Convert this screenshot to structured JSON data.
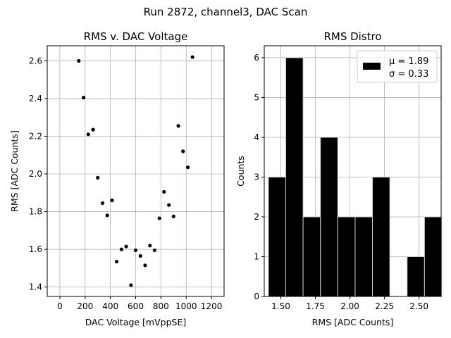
{
  "figure": {
    "suptitle": "Run 2872, channel3, DAC Scan"
  },
  "chart_data": [
    {
      "type": "scatter",
      "title": "RMS v. DAC Voltage",
      "xlabel": "DAC Voltage [mVppSE]",
      "ylabel": "RMS [ADC Counts]",
      "xlim": [
        -100,
        1300
      ],
      "ylim": [
        1.35,
        2.68
      ],
      "xticks": [
        0,
        200,
        400,
        600,
        800,
        1000,
        1200
      ],
      "xtick_labels": [
        "0",
        "200",
        "400",
        "600",
        "800",
        "1000",
        "1200"
      ],
      "yticks": [
        1.4,
        1.6,
        1.8,
        2.0,
        2.2,
        2.4,
        2.6
      ],
      "ytick_labels": [
        "1.4",
        "1.6",
        "1.8",
        "2.0",
        "2.2",
        "2.4",
        "2.6"
      ],
      "grid": true,
      "color": "#000000",
      "points": [
        {
          "x": 150,
          "y": 2.6
        },
        {
          "x": 188,
          "y": 2.405
        },
        {
          "x": 225,
          "y": 2.21
        },
        {
          "x": 263,
          "y": 2.235
        },
        {
          "x": 300,
          "y": 1.98
        },
        {
          "x": 338,
          "y": 1.845
        },
        {
          "x": 375,
          "y": 1.78
        },
        {
          "x": 413,
          "y": 1.86
        },
        {
          "x": 450,
          "y": 1.535
        },
        {
          "x": 488,
          "y": 1.6
        },
        {
          "x": 525,
          "y": 1.615
        },
        {
          "x": 563,
          "y": 1.41
        },
        {
          "x": 600,
          "y": 1.595
        },
        {
          "x": 638,
          "y": 1.565
        },
        {
          "x": 675,
          "y": 1.515
        },
        {
          "x": 713,
          "y": 1.62
        },
        {
          "x": 750,
          "y": 1.595
        },
        {
          "x": 788,
          "y": 1.765
        },
        {
          "x": 825,
          "y": 1.905
        },
        {
          "x": 863,
          "y": 1.835
        },
        {
          "x": 900,
          "y": 1.775
        },
        {
          "x": 938,
          "y": 2.255
        },
        {
          "x": 975,
          "y": 2.12
        },
        {
          "x": 1013,
          "y": 2.035
        },
        {
          "x": 1050,
          "y": 2.62
        }
      ]
    },
    {
      "type": "bar",
      "subtype": "histogram",
      "title": "RMS Distro",
      "xlabel": "RMS [ADC Counts]",
      "ylabel": "Counts",
      "xlim": [
        1.38,
        2.66
      ],
      "ylim": [
        0,
        6.3
      ],
      "xticks": [
        1.5,
        1.75,
        2.0,
        2.25,
        2.5
      ],
      "xtick_labels": [
        "1.50",
        "1.75",
        "2.00",
        "2.25",
        "2.50"
      ],
      "yticks": [
        0,
        1,
        2,
        3,
        4,
        5,
        6
      ],
      "ytick_labels": [
        "0",
        "1",
        "2",
        "3",
        "4",
        "5",
        "6"
      ],
      "grid": true,
      "bar_color": "#000000",
      "bar_edge_color": "#cccccc",
      "bin_edges": [
        1.41,
        1.5355,
        1.661,
        1.7865,
        1.912,
        2.0375,
        2.163,
        2.2885,
        2.414,
        2.5395,
        2.665
      ],
      "counts": [
        3,
        6,
        2,
        4,
        2,
        2,
        3,
        0,
        1,
        2
      ],
      "legend": {
        "placement": "upper right",
        "lines": [
          "μ = 1.89",
          "σ = 0.33"
        ]
      }
    }
  ]
}
